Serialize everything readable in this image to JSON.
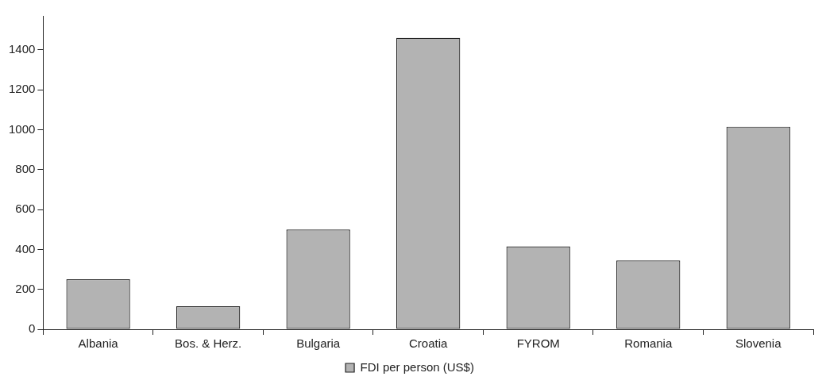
{
  "chart_data": {
    "type": "bar",
    "categories": [
      "Albania",
      "Bos. & Herz.",
      "Bulgaria",
      "Croatia",
      "FYROM",
      "Romania",
      "Slovenia"
    ],
    "series": [
      {
        "name": "FDI per person (US$)",
        "color": "#b3b3b3",
        "values": [
          250,
          115,
          500,
          1460,
          415,
          345,
          1015
        ]
      }
    ],
    "ylim": [
      0,
      1570
    ],
    "yticks": [
      0,
      200,
      400,
      600,
      800,
      1000,
      1200,
      1400
    ],
    "grid": false,
    "legend": "bottom"
  }
}
